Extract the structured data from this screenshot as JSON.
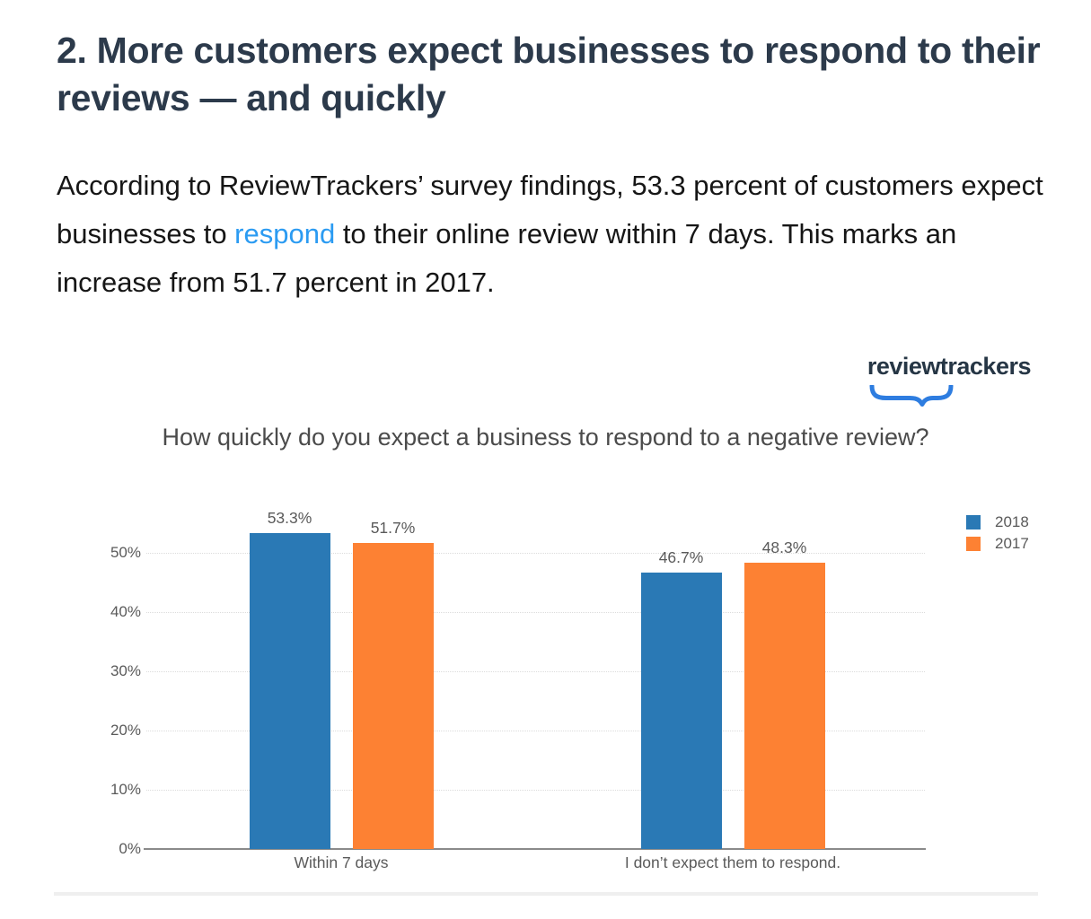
{
  "article": {
    "heading": "2. More customers expect businesses to respond to their reviews — and quickly",
    "paragraph": {
      "before_link": "According to ReviewTrackers’ survey findings, 53.3 percent of customers expect businesses to ",
      "link_text": "respond",
      "after_link": " to their online review within 7 days. This marks an increase from 51.7 percent in 2017."
    }
  },
  "logo": {
    "text": "reviewtrackers"
  },
  "colors": {
    "heading": "#2c3a4b",
    "body-text": "#161616",
    "link": "#2b9bf2",
    "logo-navy": "#263645",
    "logo-blue": "#2e7de0",
    "chart-title": "#4b4b4b",
    "chart-text": "#5a5a5a",
    "grid": "#dcdcdc",
    "axis": "#8a8a8a",
    "divider": "#efefef"
  },
  "chart_data": {
    "type": "bar",
    "title": "How quickly do you expect a business to respond to a negative review?",
    "categories": [
      "Within 7 days",
      "I don’t expect them to respond."
    ],
    "series": [
      {
        "name": "2018",
        "color": "#2a79b5",
        "values": [
          53.3,
          46.7
        ]
      },
      {
        "name": "2017",
        "color": "#fd8133",
        "values": [
          51.7,
          48.3
        ]
      }
    ],
    "value_labels": [
      [
        "53.3%",
        "46.7%"
      ],
      [
        "51.7%",
        "48.3%"
      ]
    ],
    "xlabel": "",
    "ylabel": "",
    "ylim": [
      0,
      50
    ],
    "y_ticks": [
      "0%",
      "10%",
      "20%",
      "30%",
      "40%",
      "50%"
    ],
    "grid": "horizontal-dotted",
    "legend_position": "top-right",
    "bars_overflow_top_gridline": true
  }
}
